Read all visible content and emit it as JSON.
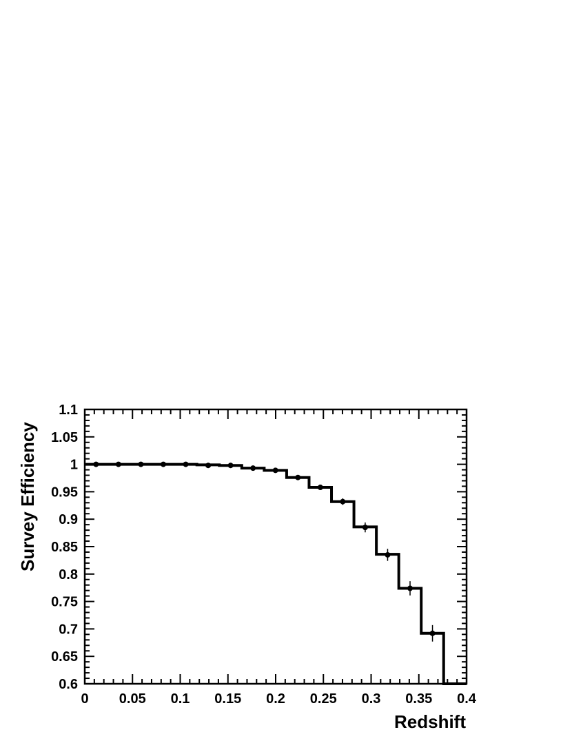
{
  "chart_data": {
    "type": "line",
    "title": "",
    "xlabel": "Redshift",
    "ylabel": "Survey Efficiency",
    "xlim": [
      0,
      0.4
    ],
    "ylim": [
      0.6,
      1.1
    ],
    "x_ticks": [
      "0",
      "0.05",
      "0.1",
      "0.15",
      "0.2",
      "0.25",
      "0.3",
      "0.35",
      "0.4"
    ],
    "y_ticks": [
      "0.6",
      "0.65",
      "0.7",
      "0.75",
      "0.8",
      "0.85",
      "0.9",
      "0.95",
      "1",
      "1.05",
      "1.1"
    ],
    "grid": false,
    "legend": "none",
    "series": [
      {
        "style": "histogram-step",
        "bin_edges": [
          0.0,
          0.0235,
          0.047,
          0.0705,
          0.094,
          0.1175,
          0.141,
          0.1645,
          0.188,
          0.2115,
          0.235,
          0.2585,
          0.282,
          0.3055,
          0.329,
          0.3525,
          0.376,
          0.4
        ],
        "values": [
          1.0,
          1.0,
          1.0,
          1.0,
          1.0,
          0.999,
          0.998,
          0.993,
          0.989,
          0.976,
          0.958,
          0.932,
          0.886,
          0.836,
          0.774,
          0.692,
          0.6
        ]
      },
      {
        "style": "points-with-errors",
        "x": [
          0.0118,
          0.0353,
          0.0588,
          0.0823,
          0.1058,
          0.1293,
          0.1528,
          0.1763,
          0.1998,
          0.2233,
          0.2468,
          0.2703,
          0.2938,
          0.3173,
          0.3408,
          0.3643
        ],
        "y": [
          1.0,
          1.0,
          1.0,
          1.0,
          1.0,
          0.998,
          0.998,
          0.993,
          0.989,
          0.976,
          0.958,
          0.932,
          0.885,
          0.835,
          0.774,
          0.692
        ],
        "err": [
          0.0,
          0.0,
          0.0,
          0.0,
          0.0,
          0.001,
          0.001,
          0.002,
          0.002,
          0.003,
          0.004,
          0.006,
          0.009,
          0.011,
          0.013,
          0.015
        ]
      }
    ]
  }
}
